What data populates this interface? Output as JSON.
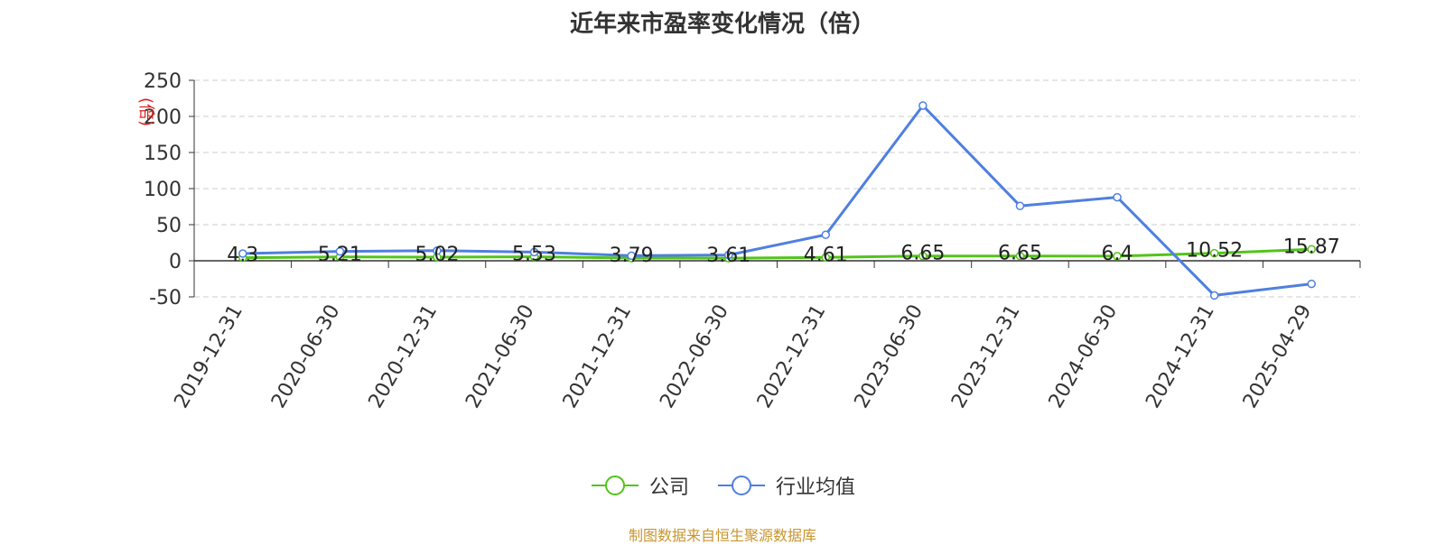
{
  "page": {
    "title": "近年来市盈率变化情况（倍）",
    "source_note": "制图数据来自恒生聚源数据库"
  },
  "chart_data": {
    "type": "line",
    "title": "近年来市盈率变化情况（倍）",
    "ylabel": "(倍)",
    "xlabel": "",
    "ylim": [
      -50,
      250
    ],
    "yticks": [
      -50,
      0,
      50,
      100,
      150,
      200,
      250
    ],
    "grid": true,
    "legend_position": "bottom",
    "categories": [
      "2019-12-31",
      "2020-06-30",
      "2020-12-31",
      "2021-06-30",
      "2021-12-31",
      "2022-06-30",
      "2022-12-31",
      "2023-06-30",
      "2023-12-31",
      "2024-06-30",
      "2024-12-31",
      "2025-04-29"
    ],
    "series": [
      {
        "name": "公司",
        "color": "#52c41a",
        "values": [
          4.3,
          5.21,
          5.02,
          5.53,
          3.79,
          3.61,
          4.61,
          6.65,
          6.65,
          6.4,
          10.52,
          15.87
        ],
        "labels": [
          "4.3",
          "5.21",
          "5.02",
          "5.53",
          "3.79",
          "3.61",
          "4.61",
          "6.65",
          "6.65",
          "6.4",
          "10.52",
          "15.87"
        ]
      },
      {
        "name": "行业均值",
        "color": "#4f7fe0",
        "values": [
          10,
          13,
          14,
          12,
          7,
          8,
          36,
          215,
          76,
          88,
          -48,
          -32
        ]
      }
    ]
  }
}
